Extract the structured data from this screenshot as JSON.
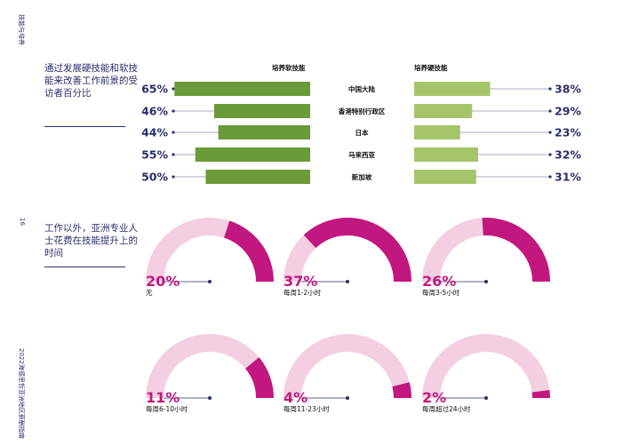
{
  "side": {
    "section_title": "技能与培养",
    "page_number": "16",
    "report_title": "2022海德思哲亚洲地区薪酬指南"
  },
  "section1": {
    "intro": "通过发展硬技能和软技能来改善工作前景的受访者百分比"
  },
  "section2": {
    "intro": "工作以外，亚洲专业人士花费在技能提升上的时间"
  },
  "colors": {
    "soft_bar": "#6b9a38",
    "hard_bar": "#a6c46a",
    "navy": "#2a2f6b",
    "magenta": "#c2177e",
    "pink_light": "#f3cfe1",
    "line": "#8f93b5"
  },
  "chart_data": [
    {
      "type": "bar",
      "title": "",
      "categories": [
        "中国大陆",
        "香港特别行政区",
        "日本",
        "马来西亚",
        "新加坡"
      ],
      "series": [
        {
          "name": "培养软技能",
          "values": [
            65,
            46,
            44,
            55,
            50
          ],
          "labels": [
            "65%",
            "46%",
            "44%",
            "55%",
            "50%"
          ]
        },
        {
          "name": "培养硬技能",
          "values": [
            38,
            29,
            23,
            32,
            31
          ],
          "labels": [
            "38%",
            "29%",
            "23%",
            "32%",
            "31%"
          ]
        }
      ]
    },
    {
      "type": "pie",
      "title": "",
      "categories": [
        "无",
        "每周1-2小时",
        "每周3-5小时",
        "每周6-10小时",
        "每周11-23小时",
        "每周超过24小时"
      ],
      "values": [
        20,
        37,
        26,
        11,
        4,
        2
      ],
      "labels": [
        "20%",
        "37%",
        "26%",
        "11%",
        "4%",
        "2%"
      ]
    }
  ]
}
